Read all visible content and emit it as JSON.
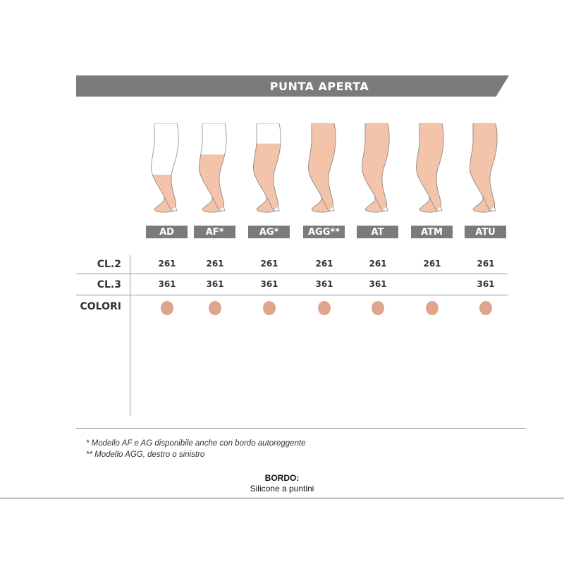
{
  "header": {
    "title": "PUNTA APERTA"
  },
  "models": [
    {
      "label": "AD",
      "cl2": "261",
      "cl3": "361",
      "coverage_from_top": 0.56
    },
    {
      "label": "AF*",
      "cl2": "261",
      "cl3": "361",
      "coverage_from_top": 0.34
    },
    {
      "label": "AG*",
      "cl2": "261",
      "cl3": "361",
      "coverage_from_top": 0.22
    },
    {
      "label": "AGG**",
      "cl2": "261",
      "cl3": "361",
      "coverage_from_top": 0
    },
    {
      "label": "AT",
      "cl2": "261",
      "cl3": "361",
      "coverage_from_top": 0
    },
    {
      "label": "ATM",
      "cl2": "261",
      "cl3": "",
      "coverage_from_top": 0
    },
    {
      "label": "ATU",
      "cl2": "261",
      "cl3": "361",
      "coverage_from_top": 0
    }
  ],
  "rows": {
    "cl2": "CL.2",
    "cl3": "CL.3",
    "colori": "COLORI"
  },
  "colors": {
    "banner": "#7b7b7d",
    "swatch": "#dea58b",
    "stocking": "#f4c4aa"
  },
  "footnotes": [
    "*  Modello AF e AG disponibile anche con bordo autoreggente",
    "** Modello AGG, destro o sinistro"
  ],
  "bordo": {
    "title": "BORDO:",
    "value": "Silicone a puntini"
  }
}
